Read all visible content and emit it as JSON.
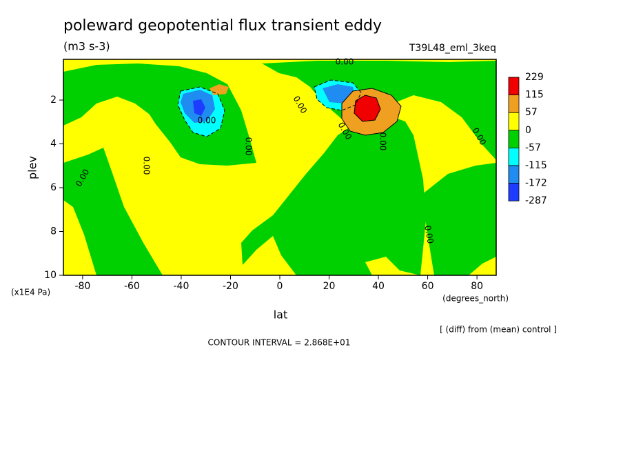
{
  "chart_data": {
    "type": "contour",
    "title": "poleward geopotential flux transient eddy",
    "subtitle": "(m3 s-3)",
    "run_label": "T39L48_eml_3keq",
    "x_label": "lat",
    "y_label": "plev",
    "x_unit": "(degrees_north)",
    "y_unit": "(x1E4 Pa)",
    "footnote": "[ (diff) from (mean) control ]",
    "contour_interval": "CONTOUR INTERVAL = 2.868E+01",
    "xlim": [
      -87.8,
      87.8
    ],
    "xticks": [
      -80,
      -60,
      -40,
      -20,
      0,
      20,
      40,
      60,
      80
    ],
    "ylim": [
      10,
      0.14
    ],
    "yticks": [
      2,
      4,
      6,
      8,
      10
    ],
    "contour_labels": [
      "0.00",
      "0.00",
      "0.00",
      "0.00",
      "0.00",
      "0.00",
      "0.00",
      "0.00",
      "0.00",
      "0.00"
    ],
    "colorbar": {
      "levels": [
        229,
        115,
        57,
        0,
        -57,
        -115,
        -172,
        -287
      ],
      "colors": [
        "#f00000",
        "#f0a020",
        "#ffff00",
        "#00d000",
        "#00ffff",
        "#1e8cf0",
        "#1e3cff"
      ]
    }
  }
}
